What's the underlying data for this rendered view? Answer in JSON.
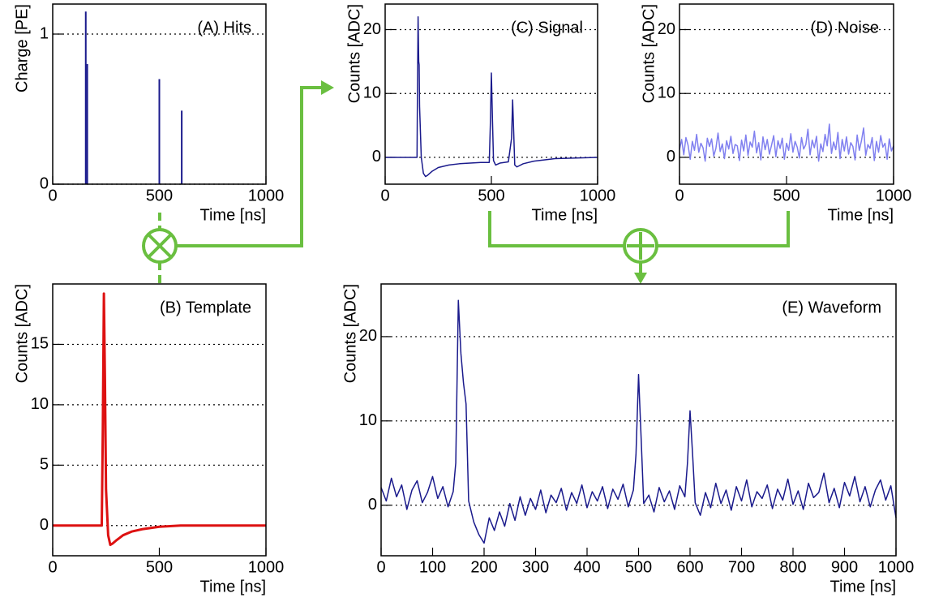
{
  "chart_data": [
    {
      "type": "stem",
      "title": "(A) Hits",
      "x_label": "Time [ns]",
      "y_label": "Charge [PE]",
      "x": [
        155,
        162,
        500,
        605
      ],
      "values": [
        1.15,
        0.8,
        0.7,
        0.49
      ],
      "color": "#1a1a8c",
      "xlim": [
        0,
        1000
      ],
      "ylim": [
        0,
        1.2
      ],
      "xticks": [
        0,
        500,
        1000
      ],
      "yticks": [
        0,
        1
      ],
      "grid": true
    },
    {
      "type": "line",
      "title": "(B) Template",
      "x_label": "Time [ns]",
      "y_label": "Counts [ADC]",
      "x": [
        0,
        230,
        235,
        240,
        245,
        250,
        260,
        270,
        280,
        300,
        330,
        370,
        420,
        500,
        600,
        800,
        1000
      ],
      "values": [
        0,
        0,
        8,
        19.2,
        12,
        3,
        -0.8,
        -1.6,
        -1.5,
        -1.2,
        -0.8,
        -0.5,
        -0.3,
        -0.1,
        0,
        0,
        0
      ],
      "color": "#dd1111",
      "xlim": [
        0,
        1000
      ],
      "ylim": [
        -2.5,
        20
      ],
      "xticks": [
        0,
        500,
        1000
      ],
      "yticks": [
        0,
        5,
        10,
        15
      ],
      "grid": true
    },
    {
      "type": "line",
      "title": "(C) Signal",
      "x_label": "Time [ns]",
      "y_label": "Counts [ADC]",
      "x": [
        0,
        150,
        152,
        155,
        158,
        160,
        162,
        165,
        170,
        180,
        190,
        200,
        220,
        250,
        300,
        350,
        400,
        450,
        490,
        495,
        500,
        505,
        510,
        520,
        540,
        560,
        580,
        595,
        600,
        605,
        610,
        620,
        650,
        700,
        800,
        1000
      ],
      "values": [
        0,
        0,
        10,
        22,
        15,
        14.5,
        8,
        5,
        0,
        -2.5,
        -3,
        -2.8,
        -2.2,
        -1.6,
        -1.2,
        -1.0,
        -0.9,
        -0.8,
        -0.8,
        5,
        13.2,
        6,
        -0.5,
        -1.2,
        -0.9,
        -0.8,
        -0.7,
        3,
        9,
        4,
        -1.2,
        -1.5,
        -1.0,
        -0.6,
        -0.2,
        0
      ],
      "color": "#1a1a8c",
      "xlim": [
        0,
        1000
      ],
      "ylim": [
        -4.2,
        24
      ],
      "xticks": [
        0,
        500,
        1000
      ],
      "yticks": [
        0,
        10,
        20
      ],
      "grid": true
    },
    {
      "type": "line",
      "title": "(D) Noise",
      "x_label": "Time [ns]",
      "y_label": "Counts [ADC]",
      "x": [
        0,
        10,
        20,
        30,
        40,
        50,
        60,
        70,
        80,
        90,
        100,
        110,
        120,
        130,
        140,
        150,
        160,
        170,
        180,
        190,
        200,
        210,
        220,
        230,
        240,
        250,
        260,
        270,
        280,
        290,
        300,
        310,
        320,
        330,
        340,
        350,
        360,
        370,
        380,
        390,
        400,
        410,
        420,
        430,
        440,
        450,
        460,
        470,
        480,
        490,
        500,
        510,
        520,
        530,
        540,
        550,
        560,
        570,
        580,
        590,
        600,
        610,
        620,
        630,
        640,
        650,
        660,
        670,
        680,
        690,
        700,
        710,
        720,
        730,
        740,
        750,
        760,
        770,
        780,
        790,
        800,
        810,
        820,
        830,
        840,
        850,
        860,
        870,
        880,
        890,
        900,
        910,
        920,
        930,
        940,
        950,
        960,
        970,
        980,
        990,
        1000
      ],
      "values": [
        1.2,
        2.8,
        0.4,
        3.1,
        1.9,
        -0.3,
        2.5,
        1.1,
        3.6,
        0.8,
        2.2,
        1.5,
        -0.6,
        3.0,
        1.7,
        2.9,
        0.2,
        1.4,
        3.8,
        0.9,
        2.1,
        -0.2,
        2.6,
        1.3,
        3.3,
        0.6,
        2.0,
        1.8,
        -0.5,
        2.7,
        1.0,
        3.5,
        0.3,
        2.4,
        1.6,
        4.1,
        0.7,
        2.3,
        -0.4,
        3.2,
        1.2,
        2.8,
        0.5,
        1.9,
        3.4,
        0.1,
        2.6,
        1.4,
        3.0,
        -0.3,
        2.2,
        1.1,
        3.7,
        0.8,
        2.5,
        1.6,
        -0.1,
        3.1,
        1.3,
        2.0,
        4.4,
        0.4,
        2.7,
        1.5,
        3.3,
        -0.6,
        2.1,
        0.9,
        3.6,
        1.8,
        5.2,
        0.6,
        2.4,
        1.2,
        3.9,
        -0.2,
        2.8,
        1.0,
        3.2,
        0.5,
        2.3,
        1.7,
        -0.4,
        3.5,
        1.1,
        2.6,
        4.6,
        0.3,
        2.0,
        1.4,
        3.1,
        -0.5,
        2.5,
        0.8,
        3.4,
        1.6,
        2.2,
        -0.3,
        2.9,
        1.0,
        1.8
      ],
      "color": "#8080f0",
      "xlim": [
        0,
        1000
      ],
      "ylim": [
        -4.2,
        24
      ],
      "xticks": [
        0,
        500,
        1000
      ],
      "yticks": [
        0,
        10,
        20
      ],
      "grid": true
    },
    {
      "type": "line",
      "title": "(E) Waveform",
      "x_label": "Time [ns]",
      "y_label": "Counts [ADC]",
      "x": [
        0,
        10,
        20,
        30,
        40,
        50,
        60,
        70,
        80,
        90,
        100,
        110,
        120,
        130,
        140,
        145,
        150,
        155,
        160,
        165,
        170,
        180,
        190,
        200,
        210,
        220,
        230,
        240,
        250,
        260,
        270,
        280,
        290,
        300,
        310,
        320,
        330,
        340,
        350,
        360,
        370,
        380,
        390,
        400,
        410,
        420,
        430,
        440,
        450,
        460,
        470,
        480,
        490,
        495,
        500,
        505,
        510,
        520,
        530,
        540,
        550,
        560,
        570,
        580,
        590,
        595,
        600,
        605,
        610,
        620,
        630,
        640,
        650,
        660,
        670,
        680,
        690,
        700,
        710,
        720,
        730,
        740,
        750,
        760,
        770,
        780,
        790,
        800,
        810,
        820,
        830,
        840,
        850,
        860,
        870,
        880,
        890,
        900,
        910,
        920,
        930,
        940,
        950,
        960,
        970,
        980,
        990,
        1000
      ],
      "values": [
        2.1,
        0.5,
        3.2,
        1.0,
        2.4,
        -0.5,
        1.8,
        2.9,
        0.3,
        1.5,
        3.4,
        0.8,
        2.2,
        -0.2,
        1.6,
        5,
        24.3,
        18,
        14.5,
        12,
        0.5,
        -2.0,
        -3.5,
        -4.5,
        -1.5,
        -3.0,
        -0.8,
        -2.5,
        0.2,
        -1.8,
        1.0,
        -1.2,
        0.8,
        -0.5,
        1.8,
        -0.9,
        1.2,
        0.3,
        2.0,
        -0.6,
        1.5,
        0.2,
        2.4,
        -0.3,
        1.6,
        0.5,
        2.2,
        -0.4,
        1.9,
        0.7,
        2.5,
        -0.2,
        1.8,
        6,
        15.5,
        8,
        0.2,
        1.2,
        -0.8,
        2.1,
        0.4,
        1.7,
        -0.5,
        2.3,
        1.0,
        5,
        11.2,
        6,
        0.3,
        -1.2,
        1.5,
        -0.3,
        2.6,
        0.2,
        1.8,
        -0.6,
        2.2,
        0.5,
        3.0,
        -0.2,
        1.6,
        0.8,
        2.4,
        -0.4,
        1.9,
        0.6,
        3.1,
        0.1,
        1.7,
        -0.5,
        2.6,
        0.9,
        1.5,
        3.8,
        0.3,
        2.0,
        -0.3,
        2.7,
        1.1,
        3.4,
        0.4,
        2.2,
        -0.2,
        1.8,
        3.0,
        0.6,
        2.3,
        -1.5
      ],
      "color": "#1a1a8c",
      "xlim": [
        0,
        1000
      ],
      "ylim": [
        -6,
        26.25
      ],
      "xticks": [
        0,
        100,
        200,
        300,
        400,
        500,
        600,
        700,
        800,
        900,
        1000
      ],
      "yticks": [
        0,
        10,
        20
      ],
      "grid": true
    }
  ]
}
